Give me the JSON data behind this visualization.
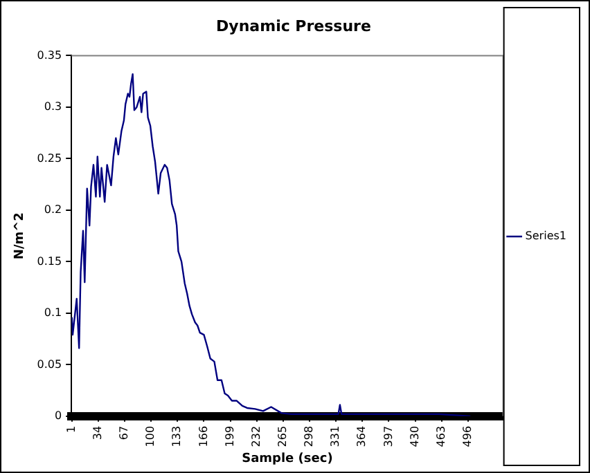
{
  "chart_data": {
    "type": "line",
    "title": "Dynamic Pressure",
    "xlabel": "Sample (sec)",
    "ylabel": "N/m^2",
    "xlim": [
      0.5,
      540
    ],
    "xticks": [
      1,
      34,
      67,
      100,
      133,
      166,
      199,
      232,
      265,
      298,
      331,
      364,
      397,
      430,
      463,
      496
    ],
    "ylim": [
      0,
      0.35
    ],
    "yticks": [
      0,
      0.05,
      0.1,
      0.15,
      0.2,
      0.25,
      0.3,
      0.35
    ],
    "grid": false,
    "legend": "right",
    "marker": "none",
    "line_style": "solid",
    "series": [
      {
        "name": "Series1",
        "color": "#000080",
        "x": [
          1,
          2,
          7,
          10,
          12,
          15,
          17,
          20,
          23,
          25,
          28,
          31,
          33,
          36,
          38,
          42,
          45,
          50,
          53,
          56,
          59,
          63,
          66,
          68,
          71,
          73,
          75,
          77,
          79,
          82,
          86,
          88,
          90,
          94,
          96,
          99,
          102,
          105,
          109,
          112,
          117,
          120,
          123,
          126,
          130,
          132,
          134,
          138,
          142,
          145,
          148,
          151,
          155,
          158,
          161,
          166,
          170,
          174,
          179,
          183,
          188,
          192,
          196,
          201,
          207,
          214,
          220,
          230,
          240,
          250,
          263,
          275,
          300,
          334,
          336,
          338,
          380,
          420,
          460,
          499
        ],
        "values": [
          0.096,
          0.079,
          0.114,
          0.066,
          0.14,
          0.18,
          0.13,
          0.221,
          0.185,
          0.223,
          0.244,
          0.213,
          0.252,
          0.213,
          0.241,
          0.208,
          0.244,
          0.224,
          0.252,
          0.27,
          0.254,
          0.277,
          0.287,
          0.303,
          0.313,
          0.31,
          0.323,
          0.332,
          0.297,
          0.3,
          0.31,
          0.295,
          0.313,
          0.315,
          0.29,
          0.282,
          0.262,
          0.247,
          0.216,
          0.236,
          0.244,
          0.241,
          0.229,
          0.206,
          0.196,
          0.185,
          0.16,
          0.15,
          0.129,
          0.119,
          0.107,
          0.099,
          0.091,
          0.088,
          0.081,
          0.079,
          0.068,
          0.056,
          0.053,
          0.035,
          0.035,
          0.022,
          0.02,
          0.015,
          0.015,
          0.01,
          0.008,
          0.007,
          0.005,
          0.009,
          0.003,
          0.002,
          0.002,
          0.002,
          0.011,
          0.002,
          0.002,
          0.002,
          0.002,
          0
        ]
      }
    ]
  }
}
